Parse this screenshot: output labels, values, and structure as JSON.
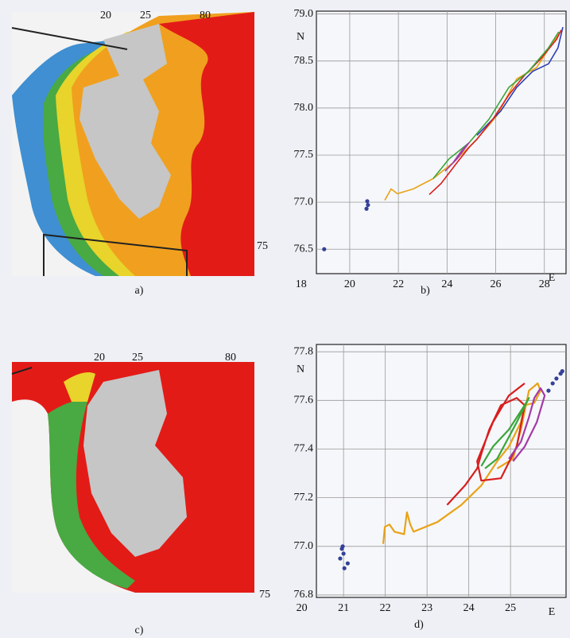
{
  "maps": [
    {
      "caption": "a)",
      "labels": [
        "20",
        "25",
        "80",
        "75"
      ]
    },
    {
      "caption": "c)",
      "labels": [
        "20",
        "25",
        "80",
        "75"
      ]
    }
  ],
  "chart_data": [
    {
      "type": "line",
      "caption": "b)",
      "x_label": "E",
      "y_label": "N",
      "xlim": [
        18.63,
        28.89
      ],
      "ylim": [
        76.24,
        79.03
      ],
      "xticks": [
        18,
        20,
        22,
        24,
        26,
        28
      ],
      "yticks": [
        {
          "value": 79,
          "label": "79.0"
        },
        78.5,
        {
          "value": 78,
          "label": "78.0"
        },
        77.5,
        {
          "value": 77,
          "label": "77.0"
        },
        76.5
      ],
      "grid": true,
      "series": [
        {
          "color": "#e8a317",
          "style": "line",
          "x": [
            21.44,
            21.7,
            21.96,
            22.61,
            23.43,
            24.25,
            25.23,
            26.05,
            26.86,
            27.68,
            28.33,
            28.66
          ],
          "y": [
            77.02,
            77.14,
            77.09,
            77.14,
            77.25,
            77.42,
            77.67,
            77.92,
            78.31,
            78.43,
            78.69,
            78.81
          ]
        },
        {
          "color": "#2b3fb5",
          "style": "line",
          "x": [
            25.23,
            26.21,
            26.86,
            27.52,
            28.17,
            28.56,
            28.76
          ],
          "y": [
            77.71,
            77.97,
            78.22,
            78.39,
            78.47,
            78.64,
            78.86
          ]
        },
        {
          "color": "#d81e1e",
          "style": "line",
          "x": [
            23.27,
            23.76,
            24.41,
            24.9,
            25.23,
            25.88,
            26.54,
            27.19,
            27.84,
            28.5,
            28.69
          ],
          "y": [
            77.08,
            77.2,
            77.42,
            77.58,
            77.67,
            77.88,
            78.14,
            78.35,
            78.52,
            78.73,
            78.83
          ]
        },
        {
          "color": "#3aa63a",
          "style": "line",
          "x": [
            23.43,
            24.08,
            24.9,
            25.72,
            26.54,
            27.35,
            28.17,
            28.59
          ],
          "y": [
            77.25,
            77.46,
            77.63,
            77.88,
            78.22,
            78.39,
            78.64,
            78.81
          ]
        },
        {
          "color": "#a43aa8",
          "style": "line",
          "x": [
            23.92,
            24.41,
            24.9,
            24.58,
            24.25
          ],
          "y": [
            77.33,
            77.46,
            77.63,
            77.54,
            77.42
          ]
        },
        {
          "color": "#34419a",
          "style": "points",
          "x": [
            20.72,
            20.75,
            20.69,
            18.95
          ],
          "y": [
            77.01,
            76.97,
            76.93,
            76.5
          ]
        }
      ]
    },
    {
      "type": "line",
      "caption": "d)",
      "x_label": "E",
      "y_label": "N",
      "xlim": [
        20.35,
        26.33
      ],
      "ylim": [
        76.79,
        77.83
      ],
      "xticks": [
        20,
        21,
        22,
        23,
        24,
        25
      ],
      "yticks": [
        77.8,
        77.6,
        77.4,
        77.2,
        {
          "value": 77,
          "label": "77.0"
        },
        76.8
      ],
      "grid": true,
      "series": [
        {
          "color": "#e8a317",
          "style": "line",
          "x": [
            21.95,
            21.99,
            22.1,
            22.22,
            22.45,
            22.52,
            22.6,
            22.68,
            23.25,
            23.82,
            24.3,
            24.68,
            24.96,
            25.25,
            25.34,
            25.57,
            25.72,
            25.65,
            25.44,
            25.25,
            25.06,
            24.68
          ],
          "y": [
            77.01,
            77.08,
            77.09,
            77.06,
            77.05,
            77.14,
            77.09,
            77.06,
            77.1,
            77.17,
            77.25,
            77.35,
            77.41,
            77.51,
            77.58,
            77.59,
            77.64,
            77.67,
            77.64,
            77.48,
            77.36,
            77.32
          ]
        },
        {
          "color": "#d81e1e",
          "style": "line",
          "x": [
            23.48,
            23.91,
            24.2,
            24.3,
            24.49,
            24.77,
            25.15,
            25.34,
            25.15,
            24.77,
            24.3,
            24.2,
            24.58,
            24.96,
            25.34
          ],
          "y": [
            77.17,
            77.25,
            77.32,
            77.38,
            77.48,
            77.58,
            77.61,
            77.58,
            77.41,
            77.28,
            77.27,
            77.35,
            77.51,
            77.62,
            77.67
          ]
        },
        {
          "color": "#3aa63a",
          "style": "line",
          "x": [
            24.3,
            24.58,
            24.96,
            25.34,
            25.44,
            25.15,
            24.68,
            24.39
          ],
          "y": [
            77.33,
            77.41,
            77.48,
            77.58,
            77.61,
            77.51,
            77.36,
            77.32
          ]
        },
        {
          "color": "#a43aa8",
          "style": "line",
          "x": [
            24.96,
            25.25,
            25.44,
            25.57,
            25.72,
            25.82,
            25.63,
            25.34,
            25.06
          ],
          "y": [
            77.36,
            77.43,
            77.53,
            77.61,
            77.65,
            77.62,
            77.51,
            77.41,
            77.35
          ]
        },
        {
          "color": "#34419a",
          "style": "points",
          "x": [
            20.98,
            20.96,
            21.0,
            20.92,
            21.1,
            21.02,
            26.1,
            26.2,
            26.24,
            26.01,
            25.91
          ],
          "y": [
            77.0,
            76.99,
            76.97,
            76.95,
            76.93,
            76.91,
            77.69,
            77.71,
            77.72,
            77.67,
            77.64
          ]
        }
      ]
    }
  ]
}
